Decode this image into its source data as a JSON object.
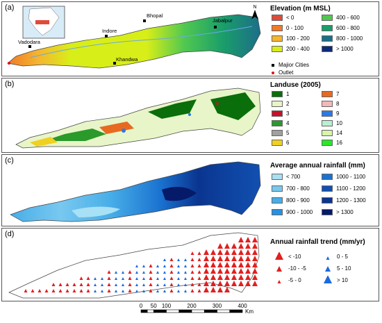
{
  "panels": [
    {
      "label": "(a)",
      "title": "Elevation (m MSL)",
      "items": [
        {
          "label": "< 0",
          "color": "#e04a3a"
        },
        {
          "label": "0 - 100",
          "color": "#f07a28"
        },
        {
          "label": "100 - 200",
          "color": "#f5b530"
        },
        {
          "label": "200 - 400",
          "color": "#d8ee18"
        },
        {
          "label": "400 - 600",
          "color": "#50c850"
        },
        {
          "label": "600 - 800",
          "color": "#1a9e6a"
        },
        {
          "label": "800 - 1000",
          "color": "#1c6e88"
        },
        {
          "label": "> 1000",
          "color": "#0c2a7a"
        }
      ],
      "extras": {
        "cities_label": "Majior Cities",
        "outlet_label": "Outlet"
      },
      "cities": [
        "Vadodara",
        "Indore",
        "Bhopal",
        "Jabalpur",
        "Khandwa"
      ]
    },
    {
      "label": "(b)",
      "title": "Landuse (2005)",
      "items": [
        {
          "label": "1",
          "color": "#0a6e0a"
        },
        {
          "label": "2",
          "color": "#e8f5c8"
        },
        {
          "label": "3",
          "color": "#c8102a"
        },
        {
          "label": "4",
          "color": "#2a9a2a"
        },
        {
          "label": "5",
          "color": "#a0a0a0"
        },
        {
          "label": "6",
          "color": "#f0d020"
        },
        {
          "label": "7",
          "color": "#e86a20"
        },
        {
          "label": "8",
          "color": "#f5b8b8"
        },
        {
          "label": "9",
          "color": "#2a7ae8"
        },
        {
          "label": "10",
          "color": "#b8f0d0"
        },
        {
          "label": "14",
          "color": "#d8f5a8"
        },
        {
          "label": "16",
          "color": "#28e828"
        }
      ]
    },
    {
      "label": "(c)",
      "title": "Average annual rainfall (mm)",
      "items": [
        {
          "label": "< 700",
          "color": "#a8e0f5"
        },
        {
          "label": "700 - 800",
          "color": "#78c8f0"
        },
        {
          "label": "800 - 900",
          "color": "#48aee8"
        },
        {
          "label": "900 - 1000",
          "color": "#2890e0"
        },
        {
          "label": "1000 - 1100",
          "color": "#1a72d0"
        },
        {
          "label": "1100 - 1200",
          "color": "#1250b0"
        },
        {
          "label": "1200 - 1300",
          "color": "#0a3590"
        },
        {
          "label": "> 1300",
          "color": "#061a6a"
        }
      ]
    },
    {
      "label": "(d)",
      "title": "Annual rainfall trend (mm/yr)",
      "items": [
        {
          "label": "< -10",
          "color": "#e02020"
        },
        {
          "label": "-10 - -5",
          "color": "#e02020"
        },
        {
          "label": "-5 - 0",
          "color": "#e02020"
        },
        {
          "label": "0 - 5",
          "color": "#1a6ae0"
        },
        {
          "label": "5 - 10",
          "color": "#1a6ae0"
        },
        {
          "label": "> 10",
          "color": "#1a6ae0"
        }
      ]
    }
  ],
  "scale": {
    "ticks": [
      "0",
      "50",
      "100",
      "200",
      "300",
      "400"
    ],
    "unit": "Km"
  },
  "north": "N"
}
